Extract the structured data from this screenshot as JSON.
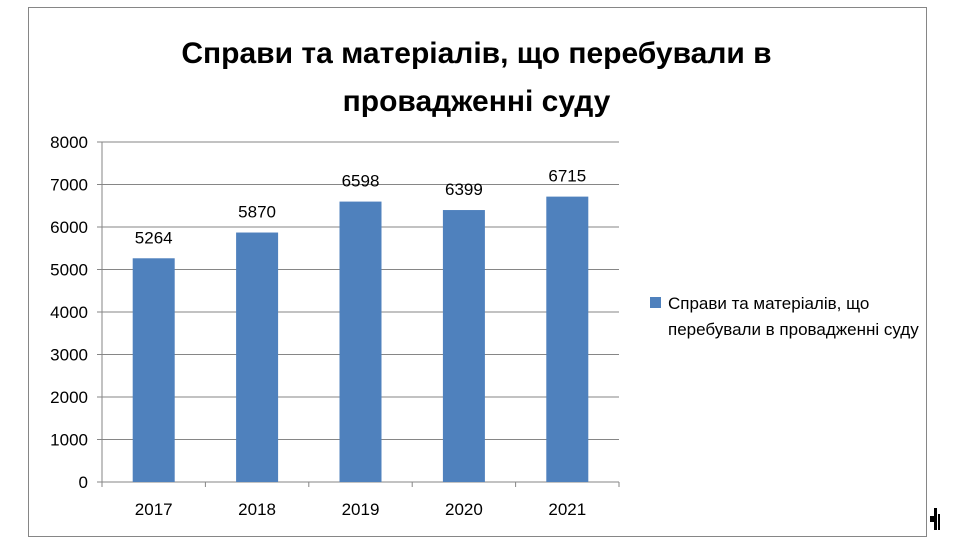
{
  "chart_data": {
    "type": "bar",
    "title": "Справи та матеріалів, що перебували в провадженні суду",
    "title_lines": [
      "Справи та матеріалів, що перебували в",
      "провадженні суду"
    ],
    "categories": [
      "2017",
      "2018",
      "2019",
      "2020",
      "2021"
    ],
    "series": [
      {
        "name": "Справи та матеріалів, що перебували в провадженні суду",
        "values": [
          5264,
          5870,
          6598,
          6399,
          6715
        ],
        "color": "#4f81bd"
      }
    ],
    "ylim": [
      0,
      8000
    ],
    "yticks": [
      0,
      1000,
      2000,
      3000,
      4000,
      5000,
      6000,
      7000,
      8000
    ],
    "grid": true,
    "legend_position": "right",
    "data_labels": true
  }
}
